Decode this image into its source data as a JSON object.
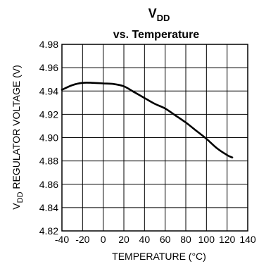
{
  "chart_data": {
    "type": "line",
    "title": {
      "main": "V",
      "sub": "DD",
      "line2": "vs. Temperature"
    },
    "xlabel": "TEMPERATURE (°C)",
    "ylabel": {
      "prefix": "V",
      "sub": "DD",
      "rest": " REGULATOR VOLTAGE (V)"
    },
    "xlim": [
      -40,
      140
    ],
    "ylim": [
      4.82,
      4.98
    ],
    "xticks": [
      -40,
      -20,
      0,
      20,
      40,
      60,
      80,
      100,
      120,
      140
    ],
    "yticks": [
      4.82,
      4.84,
      4.86,
      4.88,
      4.9,
      4.92,
      4.94,
      4.96,
      4.98
    ],
    "xtick_labels": [
      "-40",
      "-20",
      "0",
      "20",
      "40",
      "60",
      "80",
      "100",
      "120",
      "140"
    ],
    "ytick_labels": [
      "4.82",
      "4.84",
      "4.86",
      "4.88",
      "4.90",
      "4.92",
      "4.94",
      "4.96",
      "4.98"
    ],
    "grid": true,
    "series": [
      {
        "x": [
          -40,
          -30,
          -20,
          -10,
          0,
          10,
          20,
          30,
          40,
          50,
          60,
          70,
          80,
          90,
          100,
          110,
          120,
          125
        ],
        "y": [
          4.941,
          4.945,
          4.947,
          4.947,
          4.9465,
          4.946,
          4.944,
          4.939,
          4.934,
          4.929,
          4.925,
          4.919,
          4.913,
          4.906,
          4.899,
          4.891,
          4.885,
          4.883
        ]
      }
    ],
    "line_color": "#000000"
  }
}
